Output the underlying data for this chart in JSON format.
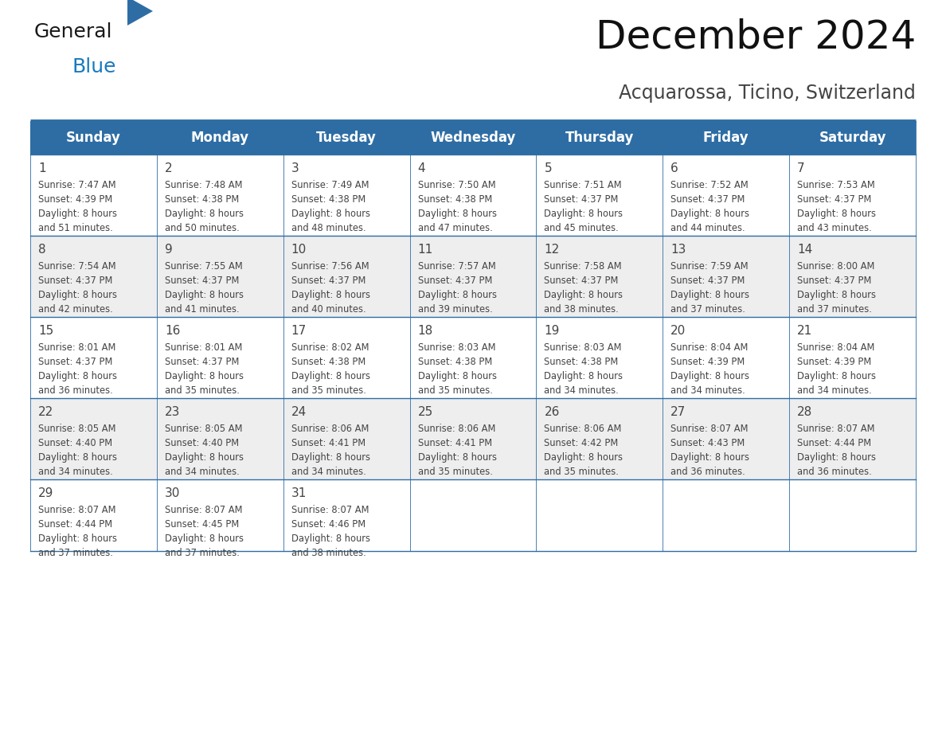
{
  "title": "December 2024",
  "subtitle": "Acquarossa, Ticino, Switzerland",
  "header_color": "#2E6DA4",
  "header_text_color": "#FFFFFF",
  "cell_bg_even": "#EEEEEE",
  "cell_bg_odd": "#FFFFFF",
  "day_names": [
    "Sunday",
    "Monday",
    "Tuesday",
    "Wednesday",
    "Thursday",
    "Friday",
    "Saturday"
  ],
  "days": [
    {
      "day": 1,
      "col": 0,
      "row": 0,
      "sunrise": "7:47 AM",
      "sunset": "4:39 PM",
      "daylight_line1": "Daylight: 8 hours",
      "daylight_line2": "and 51 minutes."
    },
    {
      "day": 2,
      "col": 1,
      "row": 0,
      "sunrise": "7:48 AM",
      "sunset": "4:38 PM",
      "daylight_line1": "Daylight: 8 hours",
      "daylight_line2": "and 50 minutes."
    },
    {
      "day": 3,
      "col": 2,
      "row": 0,
      "sunrise": "7:49 AM",
      "sunset": "4:38 PM",
      "daylight_line1": "Daylight: 8 hours",
      "daylight_line2": "and 48 minutes."
    },
    {
      "day": 4,
      "col": 3,
      "row": 0,
      "sunrise": "7:50 AM",
      "sunset": "4:38 PM",
      "daylight_line1": "Daylight: 8 hours",
      "daylight_line2": "and 47 minutes."
    },
    {
      "day": 5,
      "col": 4,
      "row": 0,
      "sunrise": "7:51 AM",
      "sunset": "4:37 PM",
      "daylight_line1": "Daylight: 8 hours",
      "daylight_line2": "and 45 minutes."
    },
    {
      "day": 6,
      "col": 5,
      "row": 0,
      "sunrise": "7:52 AM",
      "sunset": "4:37 PM",
      "daylight_line1": "Daylight: 8 hours",
      "daylight_line2": "and 44 minutes."
    },
    {
      "day": 7,
      "col": 6,
      "row": 0,
      "sunrise": "7:53 AM",
      "sunset": "4:37 PM",
      "daylight_line1": "Daylight: 8 hours",
      "daylight_line2": "and 43 minutes."
    },
    {
      "day": 8,
      "col": 0,
      "row": 1,
      "sunrise": "7:54 AM",
      "sunset": "4:37 PM",
      "daylight_line1": "Daylight: 8 hours",
      "daylight_line2": "and 42 minutes."
    },
    {
      "day": 9,
      "col": 1,
      "row": 1,
      "sunrise": "7:55 AM",
      "sunset": "4:37 PM",
      "daylight_line1": "Daylight: 8 hours",
      "daylight_line2": "and 41 minutes."
    },
    {
      "day": 10,
      "col": 2,
      "row": 1,
      "sunrise": "7:56 AM",
      "sunset": "4:37 PM",
      "daylight_line1": "Daylight: 8 hours",
      "daylight_line2": "and 40 minutes."
    },
    {
      "day": 11,
      "col": 3,
      "row": 1,
      "sunrise": "7:57 AM",
      "sunset": "4:37 PM",
      "daylight_line1": "Daylight: 8 hours",
      "daylight_line2": "and 39 minutes."
    },
    {
      "day": 12,
      "col": 4,
      "row": 1,
      "sunrise": "7:58 AM",
      "sunset": "4:37 PM",
      "daylight_line1": "Daylight: 8 hours",
      "daylight_line2": "and 38 minutes."
    },
    {
      "day": 13,
      "col": 5,
      "row": 1,
      "sunrise": "7:59 AM",
      "sunset": "4:37 PM",
      "daylight_line1": "Daylight: 8 hours",
      "daylight_line2": "and 37 minutes."
    },
    {
      "day": 14,
      "col": 6,
      "row": 1,
      "sunrise": "8:00 AM",
      "sunset": "4:37 PM",
      "daylight_line1": "Daylight: 8 hours",
      "daylight_line2": "and 37 minutes."
    },
    {
      "day": 15,
      "col": 0,
      "row": 2,
      "sunrise": "8:01 AM",
      "sunset": "4:37 PM",
      "daylight_line1": "Daylight: 8 hours",
      "daylight_line2": "and 36 minutes."
    },
    {
      "day": 16,
      "col": 1,
      "row": 2,
      "sunrise": "8:01 AM",
      "sunset": "4:37 PM",
      "daylight_line1": "Daylight: 8 hours",
      "daylight_line2": "and 35 minutes."
    },
    {
      "day": 17,
      "col": 2,
      "row": 2,
      "sunrise": "8:02 AM",
      "sunset": "4:38 PM",
      "daylight_line1": "Daylight: 8 hours",
      "daylight_line2": "and 35 minutes."
    },
    {
      "day": 18,
      "col": 3,
      "row": 2,
      "sunrise": "8:03 AM",
      "sunset": "4:38 PM",
      "daylight_line1": "Daylight: 8 hours",
      "daylight_line2": "and 35 minutes."
    },
    {
      "day": 19,
      "col": 4,
      "row": 2,
      "sunrise": "8:03 AM",
      "sunset": "4:38 PM",
      "daylight_line1": "Daylight: 8 hours",
      "daylight_line2": "and 34 minutes."
    },
    {
      "day": 20,
      "col": 5,
      "row": 2,
      "sunrise": "8:04 AM",
      "sunset": "4:39 PM",
      "daylight_line1": "Daylight: 8 hours",
      "daylight_line2": "and 34 minutes."
    },
    {
      "day": 21,
      "col": 6,
      "row": 2,
      "sunrise": "8:04 AM",
      "sunset": "4:39 PM",
      "daylight_line1": "Daylight: 8 hours",
      "daylight_line2": "and 34 minutes."
    },
    {
      "day": 22,
      "col": 0,
      "row": 3,
      "sunrise": "8:05 AM",
      "sunset": "4:40 PM",
      "daylight_line1": "Daylight: 8 hours",
      "daylight_line2": "and 34 minutes."
    },
    {
      "day": 23,
      "col": 1,
      "row": 3,
      "sunrise": "8:05 AM",
      "sunset": "4:40 PM",
      "daylight_line1": "Daylight: 8 hours",
      "daylight_line2": "and 34 minutes."
    },
    {
      "day": 24,
      "col": 2,
      "row": 3,
      "sunrise": "8:06 AM",
      "sunset": "4:41 PM",
      "daylight_line1": "Daylight: 8 hours",
      "daylight_line2": "and 34 minutes."
    },
    {
      "day": 25,
      "col": 3,
      "row": 3,
      "sunrise": "8:06 AM",
      "sunset": "4:41 PM",
      "daylight_line1": "Daylight: 8 hours",
      "daylight_line2": "and 35 minutes."
    },
    {
      "day": 26,
      "col": 4,
      "row": 3,
      "sunrise": "8:06 AM",
      "sunset": "4:42 PM",
      "daylight_line1": "Daylight: 8 hours",
      "daylight_line2": "and 35 minutes."
    },
    {
      "day": 27,
      "col": 5,
      "row": 3,
      "sunrise": "8:07 AM",
      "sunset": "4:43 PM",
      "daylight_line1": "Daylight: 8 hours",
      "daylight_line2": "and 36 minutes."
    },
    {
      "day": 28,
      "col": 6,
      "row": 3,
      "sunrise": "8:07 AM",
      "sunset": "4:44 PM",
      "daylight_line1": "Daylight: 8 hours",
      "daylight_line2": "and 36 minutes."
    },
    {
      "day": 29,
      "col": 0,
      "row": 4,
      "sunrise": "8:07 AM",
      "sunset": "4:44 PM",
      "daylight_line1": "Daylight: 8 hours",
      "daylight_line2": "and 37 minutes."
    },
    {
      "day": 30,
      "col": 1,
      "row": 4,
      "sunrise": "8:07 AM",
      "sunset": "4:45 PM",
      "daylight_line1": "Daylight: 8 hours",
      "daylight_line2": "and 37 minutes."
    },
    {
      "day": 31,
      "col": 2,
      "row": 4,
      "sunrise": "8:07 AM",
      "sunset": "4:46 PM",
      "daylight_line1": "Daylight: 8 hours",
      "daylight_line2": "and 38 minutes."
    }
  ],
  "num_rows": 5,
  "logo_general_color": "#1a1a1a",
  "logo_blue_color": "#1a7abf",
  "border_color": "#2E6DA4",
  "text_color": "#444444"
}
